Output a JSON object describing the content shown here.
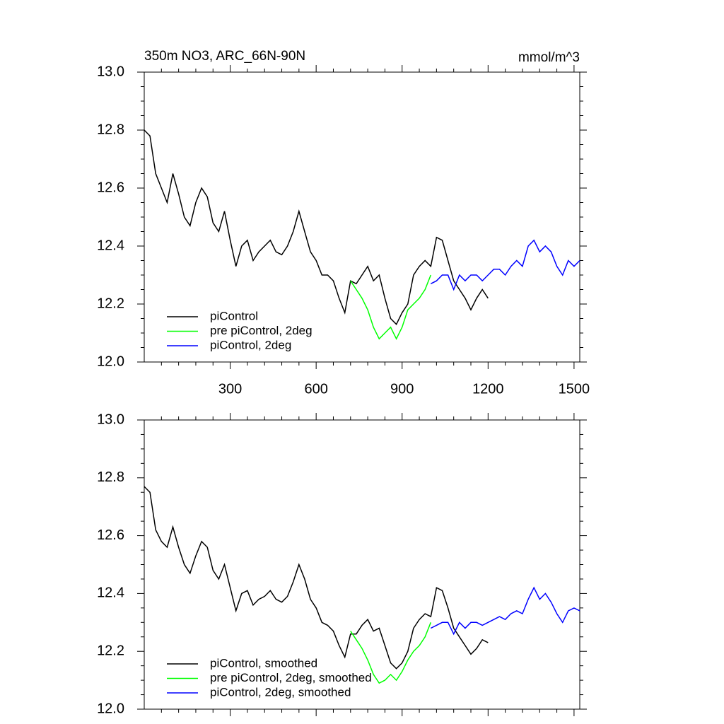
{
  "chart_data": [
    {
      "type": "line",
      "title": "350m NO3, ARC_66N-90N",
      "units": "mmol/m^3",
      "xlim": [
        0,
        1520
      ],
      "xticks": [
        300,
        600,
        900,
        1200,
        1500
      ],
      "xtick_labels": true,
      "ylim": [
        12.0,
        13.0
      ],
      "yticks": [
        {
          "value": 12.0,
          "label": "12.0"
        },
        12.2,
        12.4,
        12.6,
        12.8,
        {
          "value": 13.0,
          "label": "13.0"
        }
      ],
      "legend": "lower left",
      "series": [
        {
          "name": "piControl",
          "color": "#000000",
          "x": [
            0,
            20,
            40,
            60,
            80,
            100,
            120,
            140,
            160,
            180,
            200,
            220,
            240,
            260,
            280,
            300,
            320,
            340,
            360,
            380,
            400,
            420,
            440,
            460,
            480,
            500,
            520,
            540,
            560,
            580,
            600,
            620,
            640,
            660,
            680,
            700,
            720,
            740,
            760,
            780,
            800,
            820,
            840,
            860,
            880,
            900,
            920,
            940,
            960,
            980,
            1000,
            1020,
            1040,
            1060,
            1080,
            1100,
            1120,
            1140,
            1160,
            1180,
            1200
          ],
          "values": [
            12.8,
            12.78,
            12.65,
            12.6,
            12.55,
            12.65,
            12.58,
            12.5,
            12.47,
            12.55,
            12.6,
            12.57,
            12.48,
            12.45,
            12.52,
            12.42,
            12.33,
            12.4,
            12.42,
            12.35,
            12.38,
            12.4,
            12.42,
            12.38,
            12.37,
            12.4,
            12.45,
            12.52,
            12.45,
            12.38,
            12.35,
            12.3,
            12.3,
            12.28,
            12.22,
            12.17,
            12.28,
            12.27,
            12.3,
            12.33,
            12.28,
            12.3,
            12.22,
            12.15,
            12.13,
            12.17,
            12.2,
            12.3,
            12.33,
            12.35,
            12.33,
            12.43,
            12.42,
            12.35,
            12.28,
            12.25,
            12.22,
            12.18,
            12.22,
            12.25,
            12.22
          ]
        },
        {
          "name": "pre piControl, 2deg",
          "color": "#00ff00",
          "x": [
            720,
            740,
            760,
            780,
            800,
            820,
            840,
            860,
            880,
            900,
            920,
            940,
            960,
            980,
            1000
          ],
          "values": [
            12.28,
            12.25,
            12.22,
            12.18,
            12.12,
            12.08,
            12.1,
            12.12,
            12.08,
            12.12,
            12.18,
            12.2,
            12.22,
            12.25,
            12.3
          ]
        },
        {
          "name": "piControl, 2deg",
          "color": "#0000ff",
          "x": [
            1000,
            1020,
            1040,
            1060,
            1080,
            1100,
            1120,
            1140,
            1160,
            1180,
            1200,
            1220,
            1240,
            1260,
            1280,
            1300,
            1320,
            1340,
            1360,
            1380,
            1400,
            1420,
            1440,
            1460,
            1480,
            1500,
            1520
          ],
          "values": [
            12.27,
            12.28,
            12.3,
            12.3,
            12.25,
            12.3,
            12.28,
            12.3,
            12.3,
            12.28,
            12.3,
            12.32,
            12.32,
            12.3,
            12.33,
            12.35,
            12.33,
            12.4,
            12.42,
            12.38,
            12.4,
            12.38,
            12.33,
            12.3,
            12.35,
            12.33,
            12.35
          ]
        }
      ]
    },
    {
      "type": "line",
      "xlim": [
        0,
        1520
      ],
      "xticks": [
        300,
        600,
        900,
        1200,
        1500
      ],
      "xtick_labels": false,
      "ylim": [
        12.0,
        13.0
      ],
      "yticks": [
        {
          "value": 12.0,
          "label": "12.0"
        },
        12.2,
        12.4,
        12.6,
        12.8,
        {
          "value": 13.0,
          "label": "13.0"
        }
      ],
      "legend": "lower left",
      "series": [
        {
          "name": "piControl, smoothed",
          "color": "#000000",
          "x": [
            0,
            20,
            40,
            60,
            80,
            100,
            120,
            140,
            160,
            180,
            200,
            220,
            240,
            260,
            280,
            300,
            320,
            340,
            360,
            380,
            400,
            420,
            440,
            460,
            480,
            500,
            520,
            540,
            560,
            580,
            600,
            620,
            640,
            660,
            680,
            700,
            720,
            740,
            760,
            780,
            800,
            820,
            840,
            860,
            880,
            900,
            920,
            940,
            960,
            980,
            1000,
            1020,
            1040,
            1060,
            1080,
            1100,
            1120,
            1140,
            1160,
            1180,
            1200
          ],
          "values": [
            12.77,
            12.75,
            12.62,
            12.58,
            12.56,
            12.63,
            12.56,
            12.5,
            12.47,
            12.53,
            12.58,
            12.56,
            12.48,
            12.45,
            12.5,
            12.42,
            12.34,
            12.4,
            12.41,
            12.36,
            12.38,
            12.39,
            12.41,
            12.38,
            12.37,
            12.39,
            12.44,
            12.5,
            12.45,
            12.38,
            12.35,
            12.3,
            12.29,
            12.27,
            12.22,
            12.18,
            12.26,
            12.26,
            12.29,
            12.31,
            12.27,
            12.28,
            12.22,
            12.16,
            12.14,
            12.16,
            12.2,
            12.28,
            12.31,
            12.33,
            12.32,
            12.42,
            12.41,
            12.35,
            12.28,
            12.25,
            12.22,
            12.19,
            12.21,
            12.24,
            12.23
          ]
        },
        {
          "name": "pre piControl, 2deg, smoothed",
          "color": "#00ff00",
          "x": [
            720,
            740,
            760,
            780,
            800,
            820,
            840,
            860,
            880,
            900,
            920,
            940,
            960,
            980,
            1000
          ],
          "values": [
            12.27,
            12.24,
            12.21,
            12.17,
            12.12,
            12.09,
            12.1,
            12.12,
            12.1,
            12.13,
            12.17,
            12.2,
            12.22,
            12.25,
            12.3
          ]
        },
        {
          "name": "piControl, 2deg, smoothed",
          "color": "#0000ff",
          "x": [
            1000,
            1020,
            1040,
            1060,
            1080,
            1100,
            1120,
            1140,
            1160,
            1180,
            1200,
            1220,
            1240,
            1260,
            1280,
            1300,
            1320,
            1340,
            1360,
            1380,
            1400,
            1420,
            1440,
            1460,
            1480,
            1500,
            1520
          ],
          "values": [
            12.28,
            12.29,
            12.3,
            12.3,
            12.26,
            12.3,
            12.28,
            12.3,
            12.3,
            12.29,
            12.3,
            12.31,
            12.32,
            12.31,
            12.33,
            12.34,
            12.33,
            12.38,
            12.42,
            12.38,
            12.4,
            12.37,
            12.33,
            12.3,
            12.34,
            12.35,
            12.34
          ]
        }
      ]
    }
  ]
}
